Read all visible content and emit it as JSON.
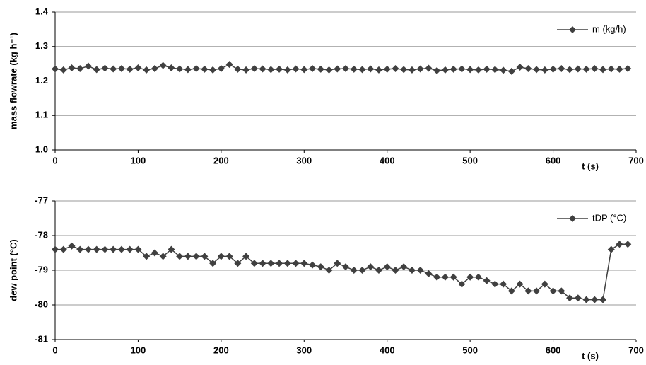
{
  "chart_data": [
    {
      "type": "line",
      "ylabel": "mass flowrate (kg h⁻¹)",
      "xlabel": "t (s)",
      "x": [
        0,
        10,
        20,
        30,
        40,
        50,
        60,
        70,
        80,
        90,
        100,
        110,
        120,
        130,
        140,
        150,
        160,
        170,
        180,
        190,
        200,
        210,
        220,
        230,
        240,
        250,
        260,
        270,
        280,
        290,
        300,
        310,
        320,
        330,
        340,
        350,
        360,
        370,
        380,
        390,
        400,
        410,
        420,
        430,
        440,
        450,
        460,
        470,
        480,
        490,
        500,
        510,
        520,
        530,
        540,
        550,
        560,
        570,
        580,
        590,
        600,
        610,
        620,
        630,
        640,
        650,
        660,
        670,
        680,
        690
      ],
      "series": [
        {
          "name": "m (kg/h)",
          "color": "#404040",
          "values": [
            1.235,
            1.232,
            1.238,
            1.236,
            1.243,
            1.233,
            1.237,
            1.235,
            1.236,
            1.234,
            1.238,
            1.232,
            1.236,
            1.245,
            1.238,
            1.235,
            1.233,
            1.236,
            1.234,
            1.232,
            1.236,
            1.248,
            1.234,
            1.232,
            1.236,
            1.235,
            1.233,
            1.234,
            1.232,
            1.235,
            1.233,
            1.236,
            1.234,
            1.232,
            1.235,
            1.236,
            1.234,
            1.233,
            1.235,
            1.232,
            1.234,
            1.236,
            1.233,
            1.232,
            1.235,
            1.237,
            1.23,
            1.232,
            1.234,
            1.235,
            1.233,
            1.232,
            1.234,
            1.233,
            1.231,
            1.228,
            1.24,
            1.236,
            1.233,
            1.232,
            1.234,
            1.236,
            1.233,
            1.235,
            1.234,
            1.236,
            1.233,
            1.235,
            1.234,
            1.236
          ]
        }
      ],
      "xlim": [
        0,
        700
      ],
      "xticks": [
        0,
        100,
        200,
        300,
        400,
        500,
        600,
        700
      ],
      "ylim": [
        1,
        1.4
      ],
      "yticks": [
        {
          "value": 1,
          "label": "1.0"
        },
        1.1,
        1.2,
        1.3,
        1.4
      ],
      "grid": true,
      "legend_position": "upper right"
    },
    {
      "type": "line",
      "ylabel": "dew point (°C)",
      "xlabel": "t (s)",
      "x": [
        0,
        10,
        20,
        30,
        40,
        50,
        60,
        70,
        80,
        90,
        100,
        110,
        120,
        130,
        140,
        150,
        160,
        170,
        180,
        190,
        200,
        210,
        220,
        230,
        240,
        250,
        260,
        270,
        280,
        290,
        300,
        310,
        320,
        330,
        340,
        350,
        360,
        370,
        380,
        390,
        400,
        410,
        420,
        430,
        440,
        450,
        460,
        470,
        480,
        490,
        500,
        510,
        520,
        530,
        540,
        550,
        560,
        570,
        580,
        590,
        600,
        610,
        620,
        630,
        640,
        650,
        660,
        670,
        680,
        690
      ],
      "series": [
        {
          "name": "tDP (°C)",
          "color": "#404040",
          "values": [
            -78.4,
            -78.4,
            -78.3,
            -78.4,
            -78.4,
            -78.4,
            -78.4,
            -78.4,
            -78.4,
            -78.4,
            -78.4,
            -78.6,
            -78.5,
            -78.6,
            -78.4,
            -78.6,
            -78.6,
            -78.6,
            -78.6,
            -78.8,
            -78.6,
            -78.6,
            -78.8,
            -78.6,
            -78.8,
            -78.8,
            -78.8,
            -78.8,
            -78.8,
            -78.8,
            -78.8,
            -78.85,
            -78.9,
            -79,
            -78.8,
            -78.9,
            -79,
            -79,
            -78.9,
            -79,
            -78.9,
            -79,
            -78.9,
            -79,
            -79,
            -79.1,
            -79.2,
            -79.2,
            -79.2,
            -79.4,
            -79.2,
            -79.2,
            -79.3,
            -79.4,
            -79.4,
            -79.6,
            -79.4,
            -79.6,
            -79.6,
            -79.4,
            -79.6,
            -79.6,
            -79.8,
            -79.8,
            -79.85,
            -79.85,
            -79.85,
            -78.4,
            -78.25,
            -78.25
          ]
        }
      ],
      "xlim": [
        0,
        700
      ],
      "xticks": [
        0,
        100,
        200,
        300,
        400,
        500,
        600,
        700
      ],
      "ylim": [
        -81,
        -77
      ],
      "yticks": [
        -81,
        -80,
        -79,
        -78,
        -77
      ],
      "grid": true,
      "legend_position": "upper right"
    }
  ]
}
